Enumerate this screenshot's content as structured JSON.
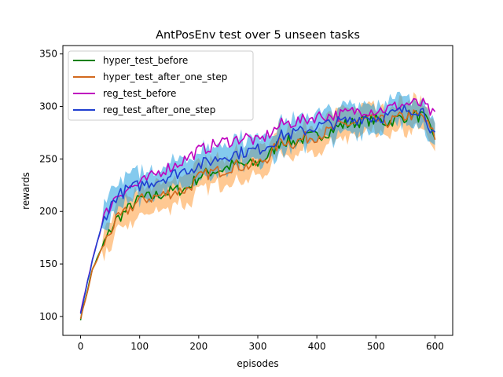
{
  "chart_data": {
    "type": "line",
    "title": "AntPosEnv test over 5 unseen tasks",
    "xlabel": "episodes",
    "ylabel": "rewards",
    "xlim": [
      -30,
      630
    ],
    "ylim": [
      82,
      358
    ],
    "xticks": [
      0,
      100,
      200,
      300,
      400,
      500,
      600
    ],
    "yticks": [
      100,
      150,
      200,
      250,
      300,
      350
    ],
    "grid": false,
    "legend_position": "upper-left",
    "x": [
      0,
      20,
      40,
      60,
      80,
      100,
      120,
      140,
      160,
      180,
      200,
      220,
      240,
      260,
      280,
      300,
      320,
      340,
      360,
      380,
      400,
      420,
      440,
      460,
      480,
      500,
      520,
      540,
      560,
      580,
      600
    ],
    "series": [
      {
        "name": "hyper_test_before",
        "color": "#008000",
        "values": [
          98,
          145,
          170,
          192,
          202,
          212,
          214,
          217,
          220,
          222,
          233,
          238,
          240,
          245,
          244,
          246,
          254,
          268,
          266,
          270,
          272,
          276,
          282,
          284,
          287,
          287,
          285,
          289,
          292,
          290,
          272
        ]
      },
      {
        "name": "hyper_test_after_one_step",
        "color": "#d2691e",
        "values": [
          97,
          144,
          170,
          191,
          201,
          211,
          213,
          216,
          219,
          221,
          232,
          237,
          239,
          244,
          243,
          245,
          253,
          268,
          265,
          270,
          272,
          276,
          282,
          284,
          287,
          287,
          285,
          289,
          292,
          290,
          271
        ]
      },
      {
        "name": "reg_test_before",
        "color": "#bf00bf",
        "values": [
          103,
          155,
          195,
          215,
          222,
          226,
          233,
          240,
          244,
          251,
          258,
          262,
          266,
          268,
          271,
          266,
          274,
          283,
          285,
          287,
          291,
          291,
          292,
          295,
          297,
          296,
          298,
          301,
          303,
          302,
          290
        ]
      },
      {
        "name": "reg_test_after_one_step",
        "color": "#1f3fd0",
        "values": [
          102,
          154,
          194,
          214,
          221,
          225,
          228,
          232,
          236,
          240,
          244,
          248,
          252,
          255,
          257,
          259,
          264,
          272,
          274,
          277,
          281,
          283,
          285,
          287,
          290,
          289,
          291,
          295,
          298,
          296,
          270
        ]
      }
    ]
  }
}
